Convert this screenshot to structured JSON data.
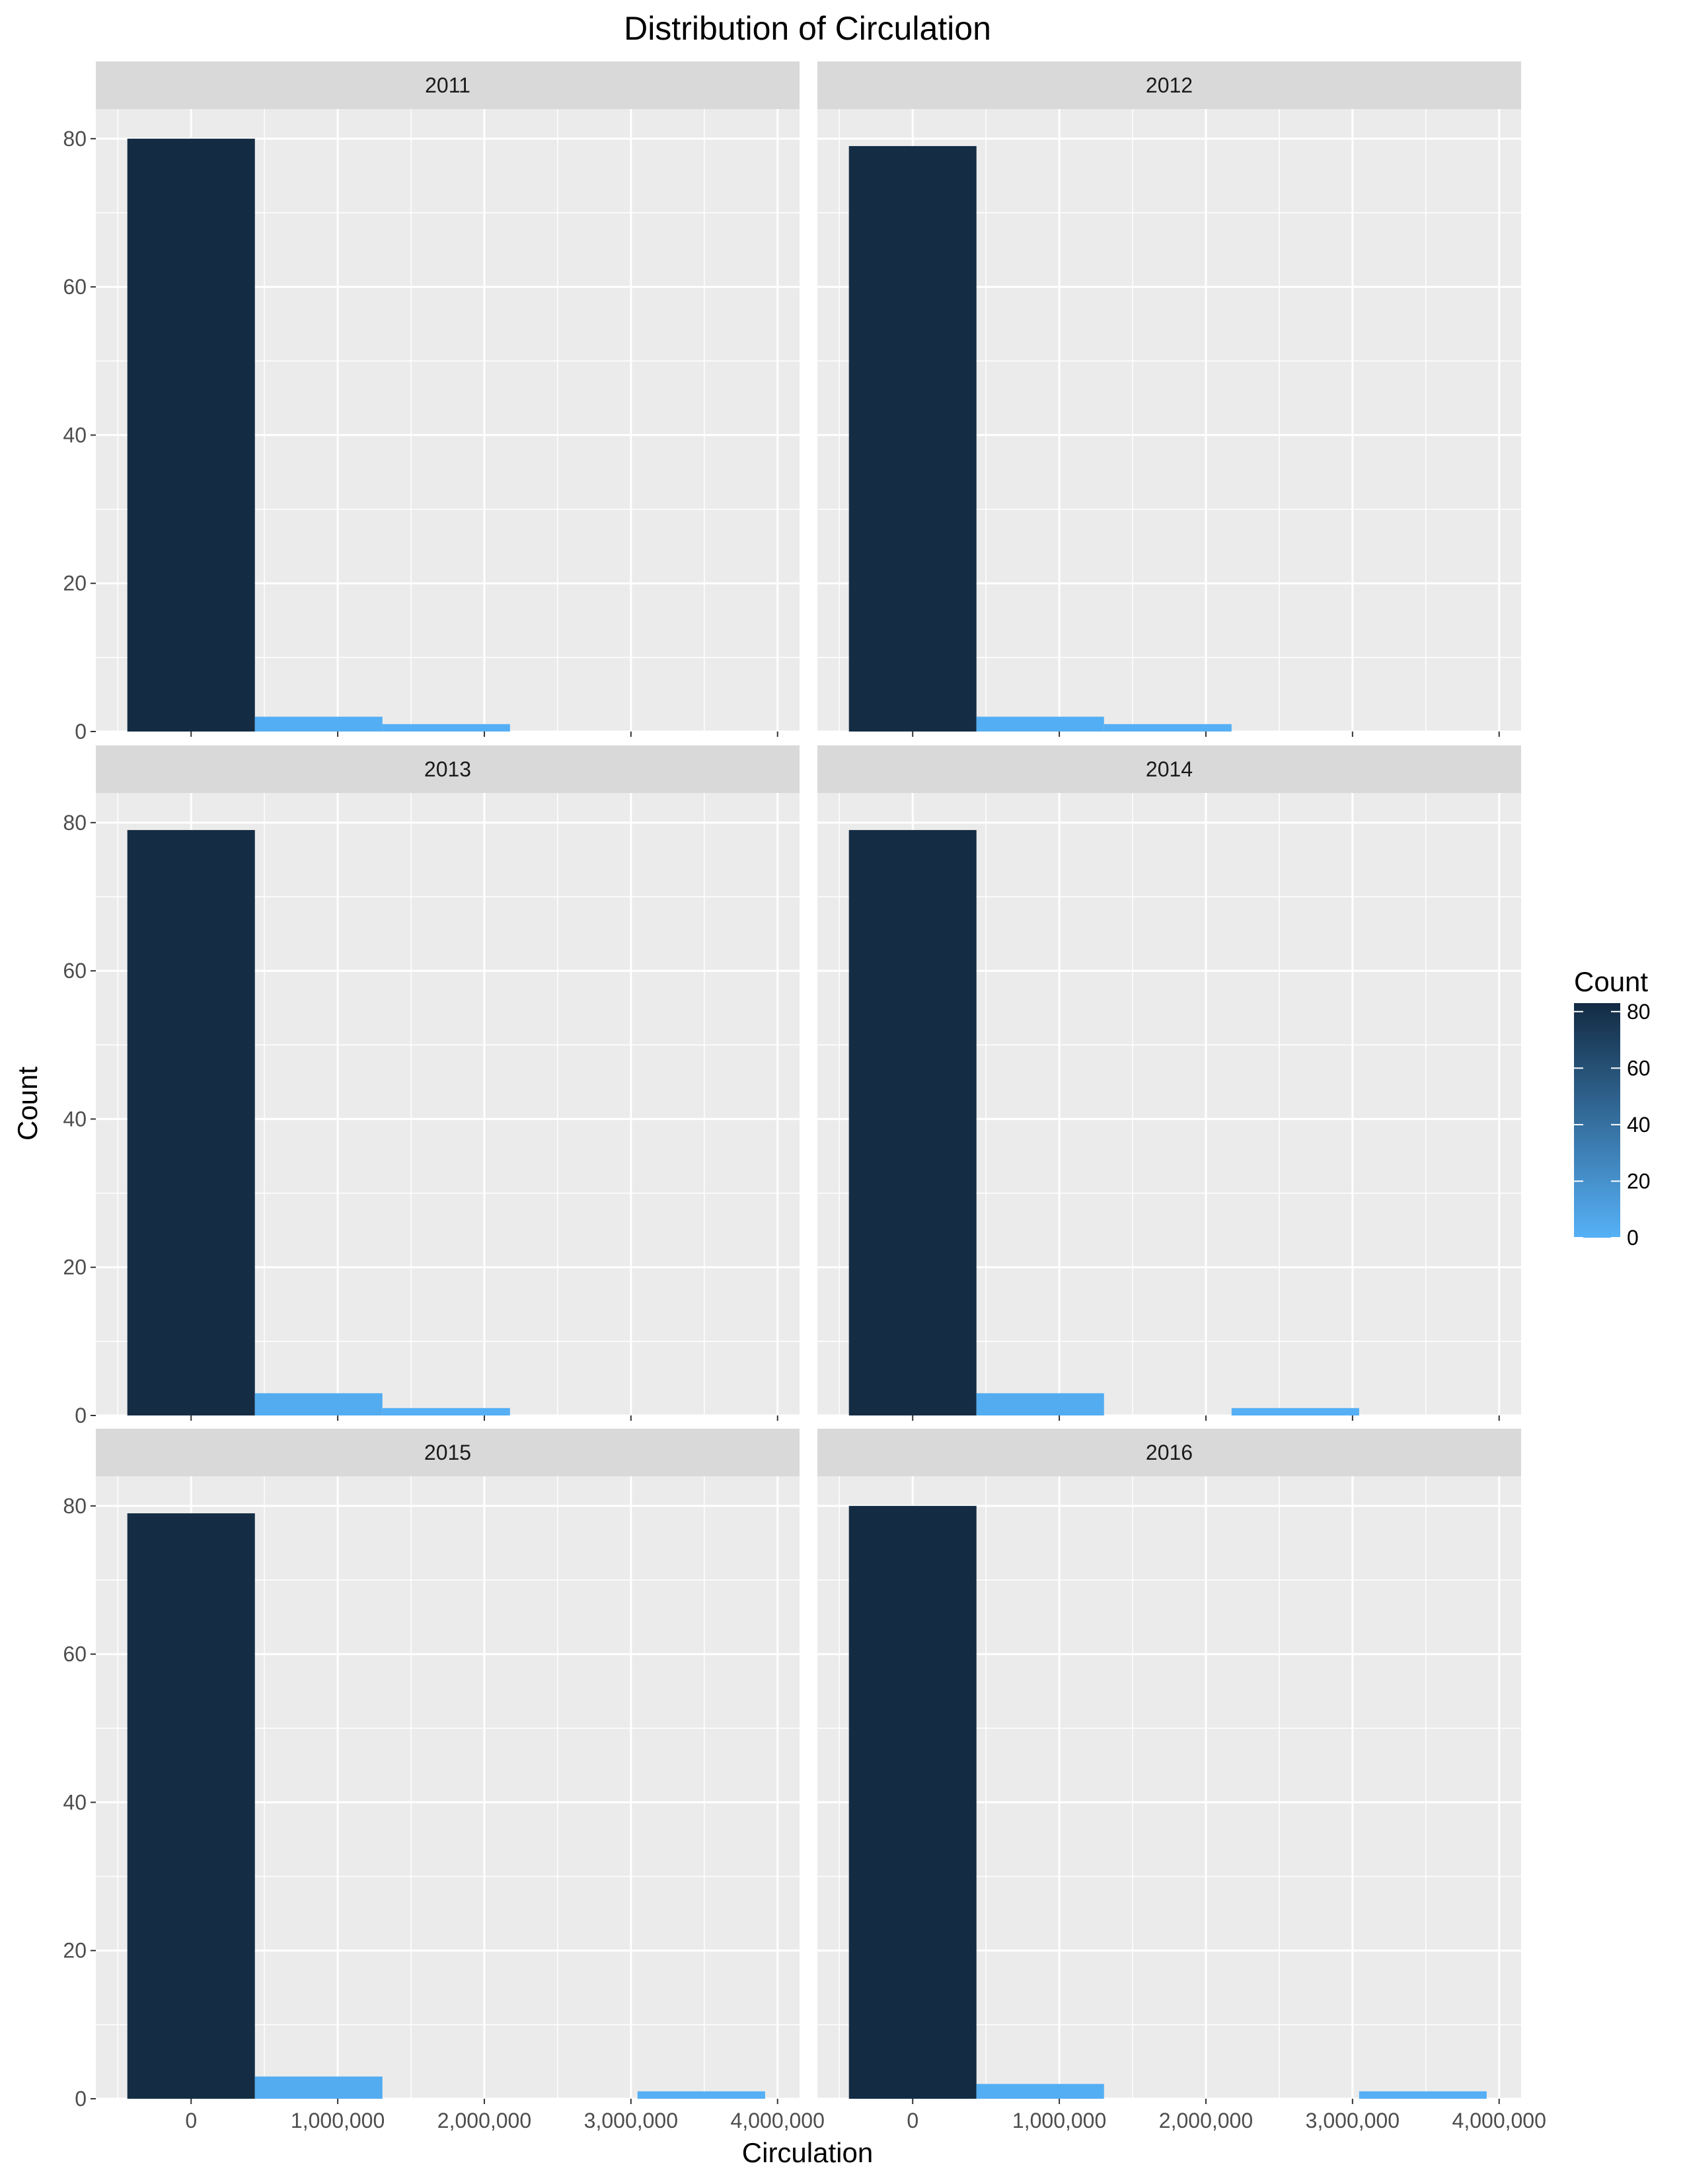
{
  "chart_data": {
    "type": "bar",
    "title": "Distribution of Circulation",
    "xlabel": "Circulation",
    "ylabel": "Count",
    "xlim": [
      -650000,
      4150000
    ],
    "ylim": [
      0,
      84
    ],
    "x_ticks": [
      0,
      1000000,
      2000000,
      3000000,
      4000000
    ],
    "x_tick_labels": [
      "0",
      "1,000,000",
      "2,000,000",
      "3,000,000",
      "4,000,000"
    ],
    "y_ticks": [
      0,
      20,
      40,
      60,
      80
    ],
    "y_tick_labels": [
      "0",
      "20",
      "40",
      "60",
      "80"
    ],
    "bin_width": 870000,
    "bin_centers": [
      0,
      870000,
      1740000,
      2610000,
      3480000
    ],
    "grid": true,
    "background_color": "#ebebeb",
    "strip_color": "#d9d9d9",
    "fill_low_color": "#56b1f7",
    "fill_high_color": "#132b43",
    "legend": {
      "title": "Count",
      "position": "right",
      "ticks": [
        0,
        20,
        40,
        60,
        80
      ],
      "tick_labels": [
        "0",
        "20",
        "40",
        "60",
        "80"
      ]
    },
    "panels": [
      {
        "label": "2011",
        "counts": [
          80,
          2,
          1,
          0,
          0
        ]
      },
      {
        "label": "2012",
        "counts": [
          79,
          2,
          1,
          0,
          0
        ]
      },
      {
        "label": "2013",
        "counts": [
          79,
          3,
          1,
          0,
          0
        ]
      },
      {
        "label": "2014",
        "counts": [
          79,
          3,
          0,
          1,
          0
        ]
      },
      {
        "label": "2015",
        "counts": [
          79,
          3,
          0,
          0,
          1
        ]
      },
      {
        "label": "2016",
        "counts": [
          80,
          2,
          0,
          0,
          1
        ]
      }
    ]
  }
}
